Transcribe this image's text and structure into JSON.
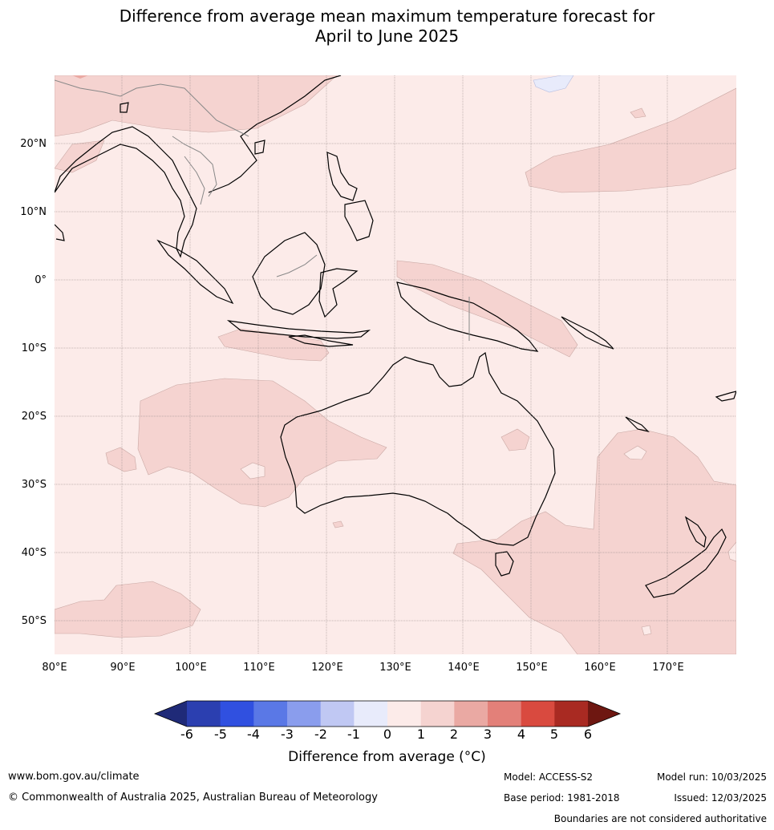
{
  "title_line1": "Difference from average mean maximum temperature forecast for",
  "title_line2": "April to June 2025",
  "map": {
    "lon_ticks": [
      "80°E",
      "90°E",
      "100°E",
      "110°E",
      "120°E",
      "130°E",
      "140°E",
      "150°E",
      "160°E",
      "170°E"
    ],
    "lat_ticks": [
      "20°N",
      "10°N",
      "0°",
      "10°S",
      "20°S",
      "30°S",
      "40°S",
      "50°S"
    ],
    "extent": {
      "lon": [
        80,
        180
      ],
      "lat": [
        -55,
        30
      ]
    }
  },
  "colorbar": {
    "ticks": [
      "-6",
      "-5",
      "-4",
      "-3",
      "-2",
      "-1",
      "0",
      "1",
      "2",
      "3",
      "4",
      "5",
      "6"
    ],
    "colors": [
      "#1f2a78",
      "#2b3fb0",
      "#3050e0",
      "#5a78e6",
      "#8a9ded",
      "#c0c8f3",
      "#e8ebfb",
      "#fcebe9",
      "#f5d3d0",
      "#eaa9a3",
      "#e38079",
      "#d94a3f",
      "#a92a22",
      "#6e1711"
    ],
    "label": "Difference from average (°C)"
  },
  "footer": {
    "website": "www.bom.gov.au/climate",
    "copyright": "© Commonwealth of Australia 2025, Australian Bureau of Meteorology",
    "model": "Model: ACCESS-S2",
    "base_period": "Base period: 1981-2018",
    "model_run": "Model run: 10/03/2025",
    "issued": "Issued: 12/03/2025",
    "disclaimer": "Boundaries are not considered authoritative"
  }
}
